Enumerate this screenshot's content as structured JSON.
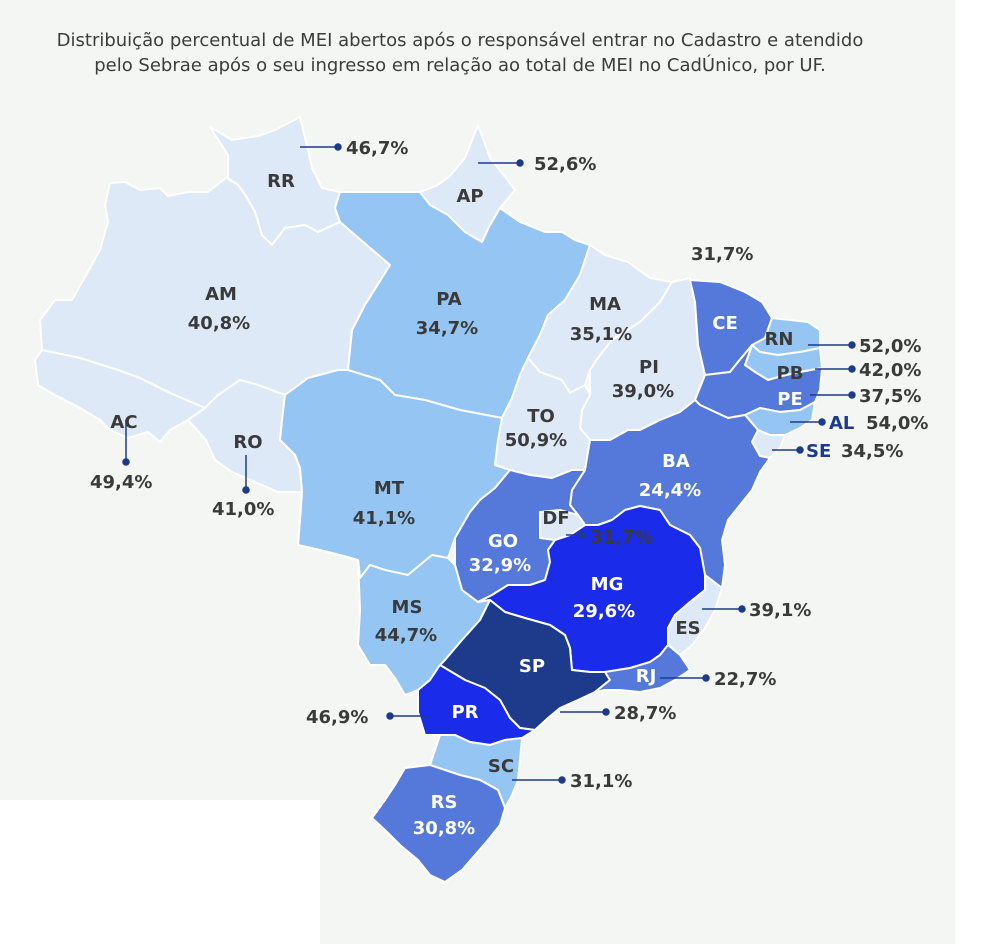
{
  "title": {
    "line1": "Distribuição percentual de MEI abertos após o responsável entrar no Cadastro e atendido",
    "line2": "pelo Sebrae após o seu ingresso em relação ao total de MEI no CadÚnico, por UF."
  },
  "colors": {
    "background": "#f4f6f4",
    "border": "#ffffff",
    "text_dark": "#3a3a3a",
    "text_light": "#ffffff",
    "text_callout_blue": "#1e3a8a",
    "leader": "#1e3a8a",
    "scale": {
      "very_light": "#dde9f7",
      "light": "#95c6f3",
      "medium": "#5578db",
      "bright": "#1a2bea",
      "dark": "#1e3a8a"
    }
  },
  "states": {
    "RR": {
      "label": "RR",
      "value": "46,7%",
      "pct": 46.7,
      "class": "very_light"
    },
    "AP": {
      "label": "AP",
      "value": "52,6%",
      "pct": 52.6,
      "class": "very_light"
    },
    "AM": {
      "label": "AM",
      "value": "40,8%",
      "pct": 40.8,
      "class": "very_light"
    },
    "PA": {
      "label": "PA",
      "value": "34,7%",
      "pct": 34.7,
      "class": "light"
    },
    "MA": {
      "label": "MA",
      "value": "35,1%",
      "pct": 35.1,
      "class": "very_light"
    },
    "CE": {
      "label": "CE",
      "value": "31,7%",
      "pct": 31.7,
      "class": "medium"
    },
    "RN": {
      "label": "RN",
      "value": "52,0%",
      "pct": 52.0,
      "class": "light"
    },
    "PB": {
      "label": "PB",
      "value": "42,0%",
      "pct": 42.0,
      "class": "light"
    },
    "PE": {
      "label": "PE",
      "value": "37,5%",
      "pct": 37.5,
      "class": "medium"
    },
    "AL": {
      "label": "AL",
      "value": "54,0%",
      "pct": 54.0,
      "class": "light"
    },
    "SE": {
      "label": "SE",
      "value": "34,5%",
      "pct": 34.5,
      "class": "very_light"
    },
    "PI": {
      "label": "PI",
      "value": "39,0%",
      "pct": 39.0,
      "class": "very_light"
    },
    "AC": {
      "label": "AC",
      "value": "49,4%",
      "pct": 49.4,
      "class": "very_light"
    },
    "RO": {
      "label": "RO",
      "value": "41,0%",
      "pct": 41.0,
      "class": "very_light"
    },
    "TO": {
      "label": "TO",
      "value": "50,9%",
      "pct": 50.9,
      "class": "very_light"
    },
    "BA": {
      "label": "BA",
      "value": "24,4%",
      "pct": 24.4,
      "class": "medium"
    },
    "MT": {
      "label": "MT",
      "value": "41,1%",
      "pct": 41.1,
      "class": "light"
    },
    "DF": {
      "label": "DF",
      "value": "31,7%",
      "pct": 31.7,
      "class": "very_light"
    },
    "GO": {
      "label": "GO",
      "value": "32,9%",
      "pct": 32.9,
      "class": "medium"
    },
    "MG": {
      "label": "MG",
      "value": "29,6%",
      "pct": 29.6,
      "class": "bright"
    },
    "ES": {
      "label": "ES",
      "value": "39,1%",
      "pct": 39.1,
      "class": "very_light"
    },
    "MS": {
      "label": "MS",
      "value": "44,7%",
      "pct": 44.7,
      "class": "light"
    },
    "SP": {
      "label": "SP",
      "value": "28,7%",
      "pct": 28.7,
      "class": "dark"
    },
    "RJ": {
      "label": "RJ",
      "value": "22,7%",
      "pct": 22.7,
      "class": "medium"
    },
    "PR": {
      "label": "PR",
      "value": "46,9%",
      "pct": 46.9,
      "class": "bright"
    },
    "SC": {
      "label": "SC",
      "value": "31,1%",
      "pct": 31.1,
      "class": "light"
    },
    "RS": {
      "label": "RS",
      "value": "30,8%",
      "pct": 30.8,
      "class": "medium"
    }
  }
}
